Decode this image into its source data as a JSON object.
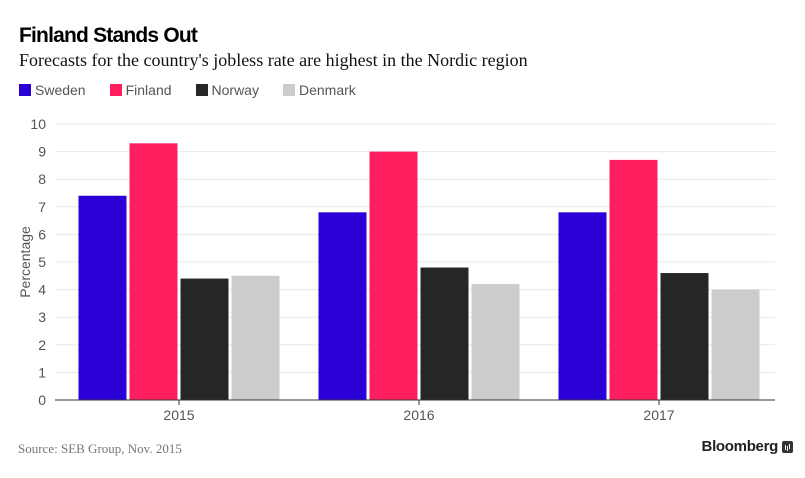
{
  "header": {
    "title": "Finland Stands Out",
    "subtitle": "Forecasts for the country's jobless rate are highest in the Nordic region"
  },
  "legend": [
    {
      "label": "Sweden",
      "color": "#2a00d6"
    },
    {
      "label": "Finland",
      "color": "#ff1f5e"
    },
    {
      "label": "Norway",
      "color": "#262626"
    },
    {
      "label": "Denmark",
      "color": "#cccccc"
    }
  ],
  "footer": {
    "source": "Source: SEB Group, Nov. 2015",
    "brand": "Bloomberg"
  },
  "chart_data": {
    "type": "bar",
    "title": "Finland Stands Out",
    "subtitle": "Forecasts for the country's jobless rate are highest in the Nordic region",
    "xlabel": "",
    "ylabel": "Percentage",
    "categories": [
      "2015",
      "2016",
      "2017"
    ],
    "series": [
      {
        "name": "Sweden",
        "color": "#2a00d6",
        "values": [
          7.4,
          6.8,
          6.8
        ]
      },
      {
        "name": "Finland",
        "color": "#ff1f5e",
        "values": [
          9.3,
          9.0,
          8.7
        ]
      },
      {
        "name": "Norway",
        "color": "#262626",
        "values": [
          4.4,
          4.8,
          4.6
        ]
      },
      {
        "name": "Denmark",
        "color": "#cccccc",
        "values": [
          4.5,
          4.2,
          4.0
        ]
      }
    ],
    "ylim": [
      0,
      10
    ],
    "yticks": [
      0,
      1,
      2,
      3,
      4,
      5,
      6,
      7,
      8,
      9,
      10
    ],
    "grid": true,
    "legend_position": "top-left"
  }
}
